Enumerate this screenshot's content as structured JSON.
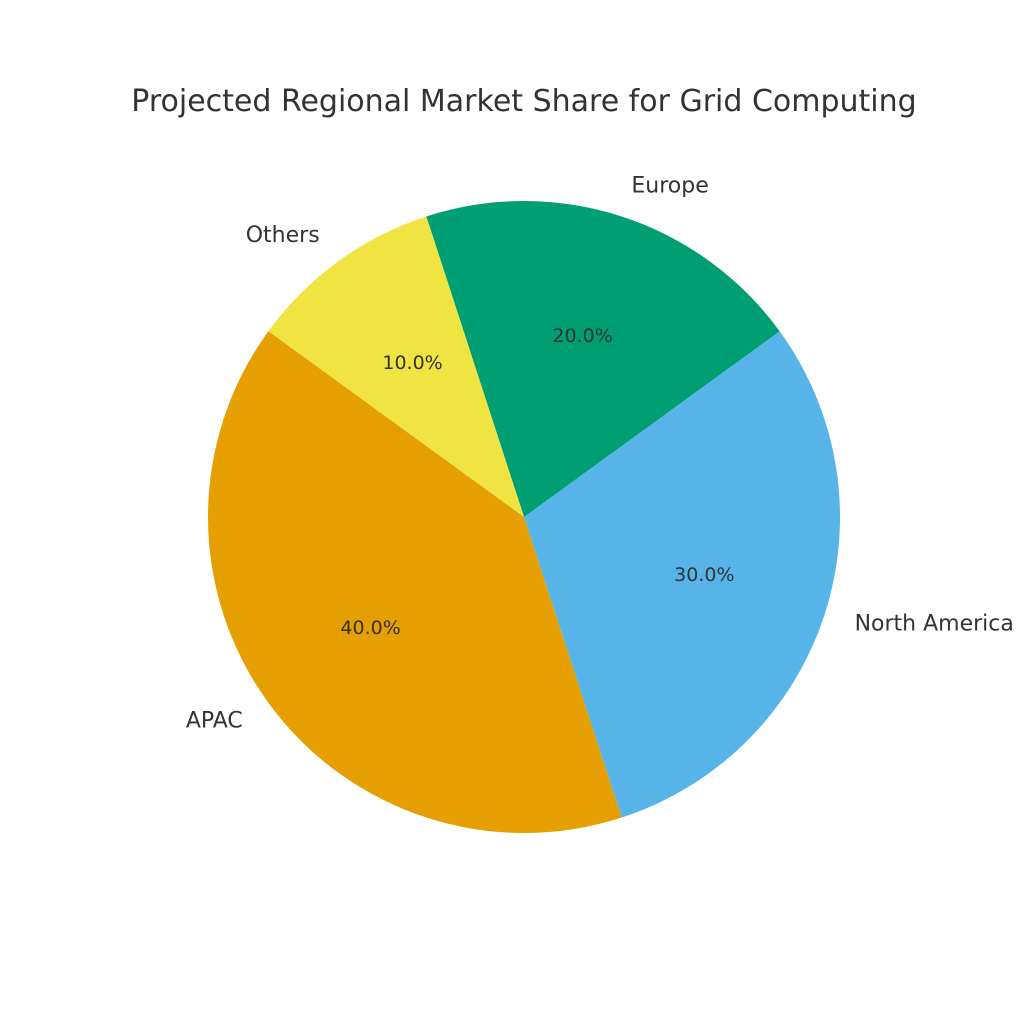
{
  "chart_data": {
    "type": "pie",
    "title": "Projected Regional Market Share for Grid Computing",
    "slices": [
      {
        "label": "North America",
        "value": 30.0,
        "pct_label": "30.0%",
        "color": "#56B4E9"
      },
      {
        "label": "Europe",
        "value": 20.0,
        "pct_label": "20.0%",
        "color": "#009E73"
      },
      {
        "label": "Others",
        "value": 10.0,
        "pct_label": "10.0%",
        "color": "#F0E442"
      },
      {
        "label": "APAC",
        "value": 40.0,
        "pct_label": "40.0%",
        "color": "#E69F00"
      }
    ],
    "start_angle_deg": -72,
    "direction": "counterclockwise",
    "legend": "none"
  }
}
